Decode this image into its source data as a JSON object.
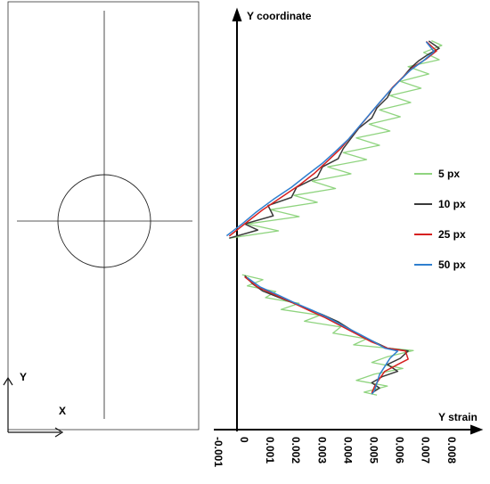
{
  "specimen": {
    "axis_y_label": "Y",
    "axis_x_label": "X"
  },
  "chart_data": {
    "type": "line",
    "ylabel": "Y coordinate",
    "xlabel": "Y strain",
    "xlim": [
      -0.001,
      0.008
    ],
    "xticks": [
      -0.001,
      0,
      0.001,
      0.002,
      0.003,
      0.004,
      0.005,
      0.006,
      0.007,
      0.008
    ],
    "xtick_labels": [
      "-0.001",
      "0",
      "0.001",
      "0.002",
      "0.003",
      "0.004",
      "0.005",
      "0.006",
      "0.007",
      "0.008"
    ],
    "ylim": [
      0,
      100
    ],
    "grid": false,
    "legend": "right",
    "segments_note": "",
    "series": [
      {
        "name": "5 px",
        "color": "#8fd47f",
        "upper": [
          [
            0.0075,
            95.5
          ],
          [
            0.0079,
            94.3
          ],
          [
            0.0072,
            92.6
          ],
          [
            0.0078,
            90.8
          ],
          [
            0.0066,
            89.1
          ],
          [
            0.0074,
            87.3
          ],
          [
            0.0063,
            85.5
          ],
          [
            0.0071,
            83.8
          ],
          [
            0.0059,
            82.0
          ],
          [
            0.0067,
            80.3
          ],
          [
            0.0055,
            78.5
          ],
          [
            0.0063,
            76.8
          ],
          [
            0.0051,
            75.0
          ],
          [
            0.0059,
            73.3
          ],
          [
            0.0046,
            71.6
          ],
          [
            0.0055,
            69.8
          ],
          [
            0.0041,
            68.0
          ],
          [
            0.005,
            66.3
          ],
          [
            0.0035,
            64.5
          ],
          [
            0.0044,
            62.8
          ],
          [
            0.0029,
            61.0
          ],
          [
            0.0038,
            59.2
          ],
          [
            0.0022,
            57.5
          ],
          [
            0.0031,
            55.8
          ],
          [
            0.0013,
            54.0
          ],
          [
            0.0024,
            52.3
          ],
          [
            0.0004,
            50.5
          ],
          [
            0.0016,
            48.8
          ],
          [
            -0.0003,
            47.0
          ]
        ],
        "lower": [
          [
            0.0002,
            38.0
          ],
          [
            0.001,
            36.8
          ],
          [
            0.0004,
            35.3
          ],
          [
            0.0015,
            33.9
          ],
          [
            0.0011,
            32.4
          ],
          [
            0.0024,
            31.0
          ],
          [
            0.0017,
            29.5
          ],
          [
            0.0032,
            28.1
          ],
          [
            0.0026,
            26.6
          ],
          [
            0.004,
            25.2
          ],
          [
            0.0037,
            23.7
          ],
          [
            0.005,
            22.3
          ],
          [
            0.0045,
            20.8
          ],
          [
            0.0068,
            19.4
          ],
          [
            0.0058,
            17.9
          ],
          [
            0.0052,
            16.5
          ],
          [
            0.0064,
            15.0
          ],
          [
            0.0053,
            13.6
          ],
          [
            0.0046,
            12.1
          ],
          [
            0.0058,
            10.7
          ],
          [
            0.0049,
            9.2
          ],
          [
            0.0054,
            8.5
          ]
        ]
      },
      {
        "name": "10 px",
        "color": "#3a3a3a",
        "upper": [
          [
            0.0074,
            95.4
          ],
          [
            0.0078,
            93.6
          ],
          [
            0.0074,
            92.2
          ],
          [
            0.007,
            90.5
          ],
          [
            0.0067,
            88.8
          ],
          [
            0.0064,
            86.5
          ],
          [
            0.006,
            84.0
          ],
          [
            0.0058,
            81.5
          ],
          [
            0.0054,
            79.0
          ],
          [
            0.0052,
            76.5
          ],
          [
            0.0047,
            74.0
          ],
          [
            0.0044,
            71.5
          ],
          [
            0.0041,
            69.0
          ],
          [
            0.0039,
            66.5
          ],
          [
            0.0033,
            64.5
          ],
          [
            0.0031,
            62.0
          ],
          [
            0.0023,
            59.5
          ],
          [
            0.0021,
            57.0
          ],
          [
            0.0012,
            55.0
          ],
          [
            0.0014,
            52.5
          ],
          [
            0.0003,
            50.5
          ],
          [
            0.0008,
            49.0
          ],
          [
            -0.0003,
            47.0
          ]
        ],
        "lower": [
          [
            0.0003,
            37.8
          ],
          [
            0.0006,
            35.8
          ],
          [
            0.001,
            34.0
          ],
          [
            0.0016,
            32.5
          ],
          [
            0.0022,
            31.0
          ],
          [
            0.0028,
            29.5
          ],
          [
            0.0033,
            28.2
          ],
          [
            0.0039,
            26.5
          ],
          [
            0.0044,
            24.5
          ],
          [
            0.0048,
            23.0
          ],
          [
            0.0053,
            21.5
          ],
          [
            0.0058,
            20.0
          ],
          [
            0.0066,
            19.3
          ],
          [
            0.0063,
            17.5
          ],
          [
            0.0058,
            16.0
          ],
          [
            0.0062,
            14.3
          ],
          [
            0.0056,
            13.0
          ],
          [
            0.0052,
            11.5
          ],
          [
            0.0055,
            10.2
          ],
          [
            0.0052,
            9.0
          ]
        ]
      },
      {
        "name": "25 px",
        "color": "#d62020",
        "upper": [
          [
            0.0073,
            95.3
          ],
          [
            0.0077,
            93.0
          ],
          [
            0.0073,
            91.0
          ],
          [
            0.0068,
            89.0
          ],
          [
            0.0064,
            86.5
          ],
          [
            0.006,
            84.0
          ],
          [
            0.0056,
            81.0
          ],
          [
            0.0052,
            78.0
          ],
          [
            0.0048,
            75.0
          ],
          [
            0.0044,
            72.0
          ],
          [
            0.004,
            69.0
          ],
          [
            0.0035,
            66.0
          ],
          [
            0.003,
            63.0
          ],
          [
            0.0024,
            60.0
          ],
          [
            0.0017,
            57.0
          ],
          [
            0.001,
            54.0
          ],
          [
            0.0004,
            51.0
          ],
          [
            -0.0003,
            47.5
          ]
        ],
        "lower": [
          [
            0.0003,
            37.5
          ],
          [
            0.0008,
            35.0
          ],
          [
            0.0015,
            33.0
          ],
          [
            0.0022,
            31.0
          ],
          [
            0.0028,
            29.2
          ],
          [
            0.0034,
            27.5
          ],
          [
            0.004,
            25.5
          ],
          [
            0.0046,
            23.5
          ],
          [
            0.0052,
            21.5
          ],
          [
            0.0058,
            20.0
          ],
          [
            0.0065,
            19.3
          ],
          [
            0.0066,
            17.3
          ],
          [
            0.0062,
            16.0
          ],
          [
            0.0057,
            14.3
          ],
          [
            0.0055,
            12.5
          ],
          [
            0.0053,
            10.5
          ],
          [
            0.0052,
            9.0
          ]
        ]
      },
      {
        "name": "50 px",
        "color": "#2f7fcf",
        "upper": [
          [
            0.0073,
            95.2
          ],
          [
            0.0076,
            92.8
          ],
          [
            0.0072,
            90.6
          ],
          [
            0.0067,
            88.3
          ],
          [
            0.0063,
            85.8
          ],
          [
            0.0059,
            83.2
          ],
          [
            0.0055,
            80.3
          ],
          [
            0.0051,
            77.3
          ],
          [
            0.0047,
            74.3
          ],
          [
            0.0043,
            71.3
          ],
          [
            0.0038,
            68.3
          ],
          [
            0.0033,
            65.4
          ],
          [
            0.0027,
            62.5
          ],
          [
            0.0021,
            59.5
          ],
          [
            0.0014,
            56.5
          ],
          [
            0.0007,
            53.2
          ],
          [
            0.0002,
            50.5
          ],
          [
            -0.0004,
            47.6
          ]
        ],
        "lower": [
          [
            0.0004,
            37.3
          ],
          [
            0.0009,
            35.0
          ],
          [
            0.0016,
            33.0
          ],
          [
            0.0022,
            31.2
          ],
          [
            0.0029,
            29.3
          ],
          [
            0.0035,
            27.5
          ],
          [
            0.0041,
            25.5
          ],
          [
            0.0047,
            23.5
          ],
          [
            0.0053,
            21.5
          ],
          [
            0.0057,
            20.0
          ],
          [
            0.0062,
            19.3
          ],
          [
            0.0059,
            17.5
          ],
          [
            0.0057,
            15.5
          ],
          [
            0.0055,
            13.5
          ],
          [
            0.0054,
            11.5
          ],
          [
            0.0053,
            9.5
          ],
          [
            0.0052,
            8.7
          ]
        ]
      }
    ]
  }
}
